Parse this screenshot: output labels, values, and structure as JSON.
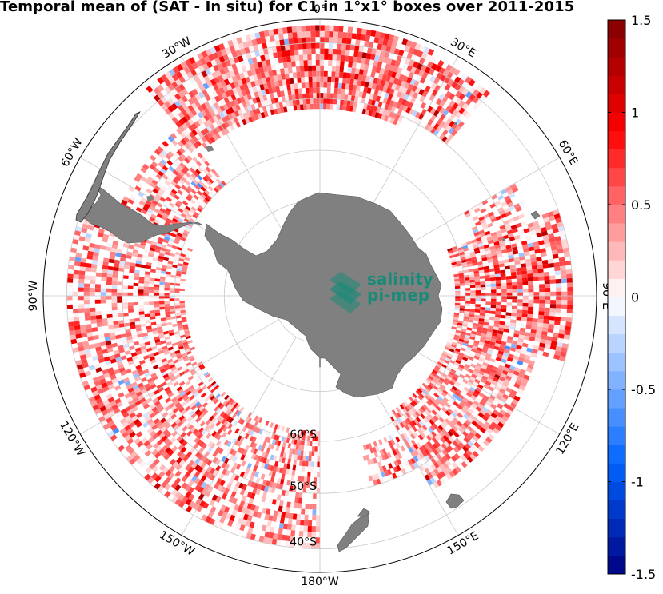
{
  "title": "Temporal mean of (SAT - In situ) for C1 in 1°x1° boxes over 2011-2015",
  "logo": {
    "line1": "salinity",
    "line2": "pi-mep",
    "color": "#1a8a78"
  },
  "longitude_labels": [
    {
      "lon": 30,
      "text": "30°E"
    },
    {
      "lon": 60,
      "text": "60°E"
    },
    {
      "lon": 90,
      "text": "90°E"
    },
    {
      "lon": 120,
      "text": "120°E"
    },
    {
      "lon": 150,
      "text": "150°E"
    },
    {
      "lon": 180,
      "text": "180°W"
    },
    {
      "lon": -150,
      "text": "150°W"
    },
    {
      "lon": -120,
      "text": "120°W"
    },
    {
      "lon": -90,
      "text": "90°W"
    },
    {
      "lon": -60,
      "text": "60°W"
    },
    {
      "lon": -30,
      "text": "30°W"
    },
    {
      "lon": 0,
      "text": "0°"
    }
  ],
  "latitude_labels": [
    {
      "lat": -60,
      "text": "60°S"
    },
    {
      "lat": -50,
      "text": "50°S"
    },
    {
      "lat": -40,
      "text": "40°S"
    }
  ],
  "map": {
    "projection": "south polar stereographic",
    "outer_latitude": -36,
    "graticule_latitudes": [
      -80,
      -70,
      -60,
      -50,
      -40
    ],
    "graticule_longitude_step": 30,
    "land_color": "#808080",
    "grid_color": "#c8c8c8"
  },
  "colorbar": {
    "min": -1.5,
    "max": 1.5,
    "levels": 30,
    "ticks": [
      {
        "value": 1.5,
        "text": "1.5"
      },
      {
        "value": 1,
        "text": "1"
      },
      {
        "value": 0.5,
        "text": "0.5"
      },
      {
        "value": 0,
        "text": "0"
      },
      {
        "value": -0.5,
        "text": "-0.5"
      },
      {
        "value": -1,
        "text": "-1"
      },
      {
        "value": -1.5,
        "text": "-1.5"
      }
    ]
  }
}
